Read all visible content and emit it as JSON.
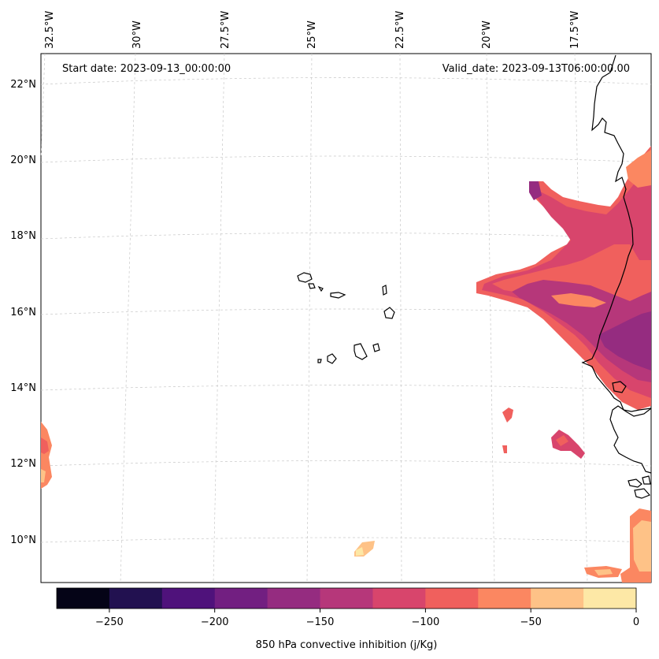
{
  "header": {
    "start_date": "Start date: 2023-09-13_00:00:00",
    "valid_date": "Valid_date: 2023-09-13T06:00:00.00"
  },
  "longitude_labels": [
    "32.5°W",
    "30°W",
    "27.5°W",
    "25°W",
    "22.5°W",
    "20°W",
    "17.5°W"
  ],
  "latitude_labels": [
    "22°N",
    "20°N",
    "18°N",
    "16°N",
    "14°N",
    "12°N",
    "10°N"
  ],
  "colorbar": {
    "label": "850 hPa convective inhibition (j/Kg)",
    "ticks": [
      "−250",
      "−200",
      "−150",
      "−100",
      "−50",
      "0"
    ],
    "colors": [
      "#050417",
      "#221150",
      "#4f127b",
      "#721f81",
      "#952c80",
      "#b6377a",
      "#d8456c",
      "#f0605d",
      "#fb8761",
      "#fec287",
      "#fde8a6"
    ],
    "range": [
      -275,
      0
    ]
  },
  "colors": {
    "grid": "#c8c8c8",
    "coastline": "#000000"
  }
}
